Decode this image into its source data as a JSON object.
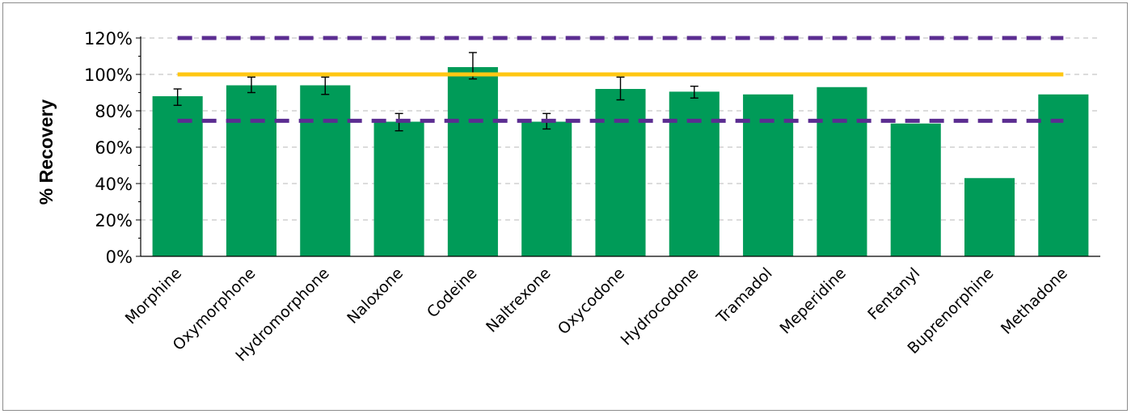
{
  "chart_data": {
    "type": "bar",
    "title": "",
    "xlabel": "",
    "ylabel": "% Recovery",
    "ylim": [
      0,
      120
    ],
    "y_tick_step": 20,
    "y_tick_format": "percent",
    "y_tick_labels": [
      "0%",
      "20%",
      "40%",
      "60%",
      "80%",
      "100%",
      "120%"
    ],
    "grid": "horizontal-dashed",
    "legend": "none",
    "categories": [
      "Morphine",
      "Oxymorphone",
      "Hydromorphone",
      "Naloxone",
      "Codeine",
      "Naltrexone",
      "Oxycodone",
      "Hydrocodone",
      "Tramadol",
      "Meperidine",
      "Fentanyl",
      "Buprenorphine",
      "Methadone"
    ],
    "values": [
      88,
      94,
      94,
      74,
      104,
      74,
      92,
      90.5,
      89,
      93,
      73,
      43,
      89
    ],
    "error_bars": [
      {
        "low": 83,
        "high": 92
      },
      {
        "low": 90,
        "high": 98.5
      },
      {
        "low": 89,
        "high": 98.5
      },
      {
        "low": 69,
        "high": 78.5
      },
      {
        "low": 97.5,
        "high": 112
      },
      {
        "low": 70,
        "high": 78.5
      },
      {
        "low": 86,
        "high": 98.5
      },
      {
        "low": 87,
        "high": 93.5
      },
      null,
      null,
      null,
      null,
      null
    ],
    "reference_lines": [
      {
        "value": 100,
        "style": "solid",
        "color": "#ffc713"
      },
      {
        "value": 120,
        "style": "dashed",
        "color": "#5b2d91"
      },
      {
        "value": 74.5,
        "style": "dashed",
        "color": "#5b2d91"
      }
    ],
    "bar_color": "#009b58"
  }
}
